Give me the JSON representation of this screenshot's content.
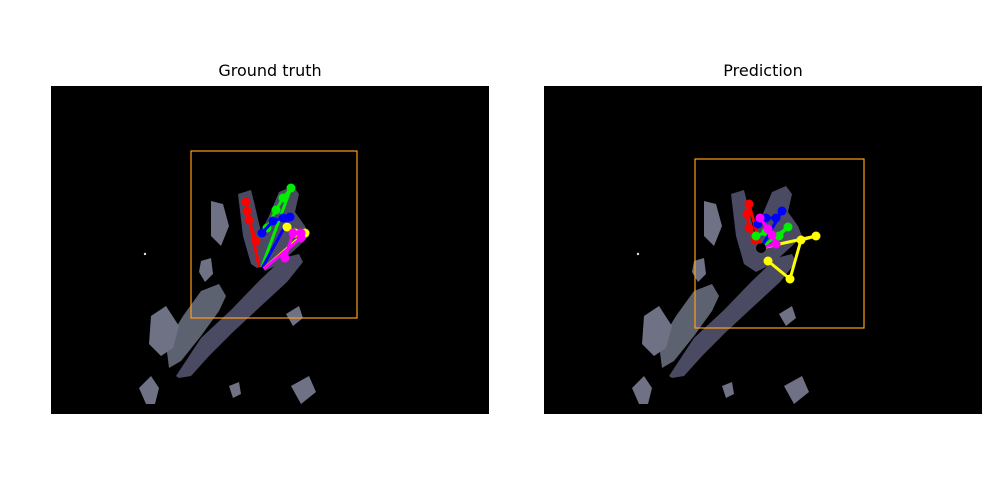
{
  "figure": {
    "panels": [
      {
        "title": "Ground truth",
        "joints": [
          [
            209,
            186
          ],
          [
            195,
            116
          ],
          [
            196,
            125
          ],
          [
            198,
            134
          ],
          [
            205,
            155
          ],
          [
            240,
            102
          ],
          [
            232,
            112
          ],
          [
            225,
            124
          ],
          [
            216,
            142
          ],
          [
            239,
            131
          ],
          [
            232,
            132
          ],
          [
            222,
            135
          ],
          [
            211,
            147
          ],
          [
            254,
            147
          ],
          [
            250,
            149
          ],
          [
            244,
            147
          ],
          [
            236,
            141
          ],
          [
            250,
            152
          ],
          [
            250,
            147
          ],
          [
            242,
            147
          ],
          [
            234,
            172
          ]
        ]
      },
      {
        "title": "Prediction",
        "joints": [
          [
            217,
            162
          ],
          [
            205,
            118
          ],
          [
            203,
            128
          ],
          [
            205,
            142
          ],
          [
            211,
            154
          ],
          [
            244,
            141
          ],
          [
            235,
            150
          ],
          [
            222,
            146
          ],
          [
            212,
            150
          ],
          [
            238,
            125
          ],
          [
            232,
            132
          ],
          [
            222,
            132
          ],
          [
            214,
            138
          ],
          [
            272,
            150
          ],
          [
            257,
            154
          ],
          [
            246,
            193
          ],
          [
            224,
            175
          ],
          [
            232,
            158
          ],
          [
            228,
            149
          ],
          [
            224,
            143
          ],
          [
            216,
            132
          ]
        ]
      }
    ],
    "finger_colors": [
      "#ff0000",
      "#00ee00",
      "#0000ff",
      "#ffff00",
      "#ff00ff"
    ],
    "box_color": "#ff9f1c"
  }
}
